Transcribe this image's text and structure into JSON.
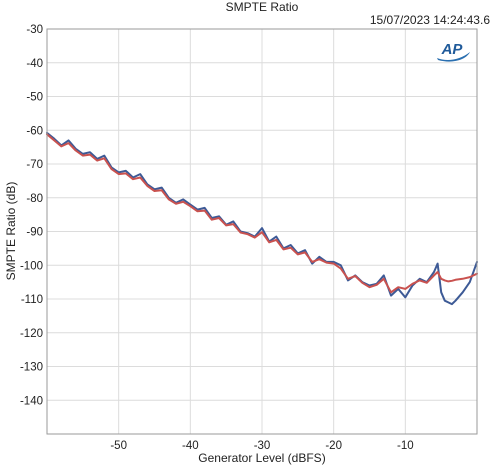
{
  "chart_data": {
    "type": "line",
    "title": "SMPTE Ratio",
    "timestamp": "15/07/2023 14:24:43.6",
    "logo_text": "AP",
    "xlabel": "Generator Level (dBFS)",
    "ylabel": "SMPTE Ratio (dB)",
    "xlim": [
      -60,
      0
    ],
    "ylim": [
      -150,
      -30
    ],
    "xticks": [
      -50,
      -40,
      -30,
      -20,
      -10
    ],
    "yticks": [
      -30,
      -40,
      -50,
      -60,
      -70,
      -80,
      -90,
      -100,
      -110,
      -120,
      -130,
      -140
    ],
    "grid": true,
    "series": [
      {
        "color": "#3d5a96",
        "x": [
          -60,
          -59,
          -58,
          -57,
          -56,
          -55,
          -54,
          -53,
          -52,
          -51,
          -50,
          -49,
          -48,
          -47,
          -46,
          -45,
          -44,
          -43,
          -42,
          -41,
          -40,
          -39,
          -38,
          -37,
          -36,
          -35,
          -34,
          -33,
          -32,
          -31,
          -30,
          -29,
          -28,
          -27,
          -26,
          -25,
          -24,
          -23,
          -22,
          -21,
          -20,
          -19,
          -18,
          -17,
          -16,
          -15,
          -14,
          -13,
          -12,
          -11,
          -10,
          -9,
          -8,
          -7,
          -6,
          -5.5,
          -5,
          -4.5,
          -4,
          -3.5,
          -3,
          -2,
          -1,
          0
        ],
        "values": [
          -60.8,
          -62.5,
          -64.5,
          -63.0,
          -65.5,
          -67.0,
          -66.5,
          -68.5,
          -67.5,
          -71.0,
          -72.5,
          -72.0,
          -74.0,
          -73.0,
          -76.0,
          -77.5,
          -77.0,
          -80.0,
          -81.5,
          -80.5,
          -82.0,
          -83.5,
          -83.0,
          -86.0,
          -85.5,
          -88.0,
          -87.0,
          -90.0,
          -90.5,
          -91.5,
          -89.0,
          -93.0,
          -91.5,
          -95.0,
          -94.0,
          -96.5,
          -95.5,
          -99.5,
          -97.5,
          -99.0,
          -99.0,
          -100.0,
          -104.5,
          -103.0,
          -105.0,
          -106.0,
          -105.5,
          -103.0,
          -109.0,
          -107.0,
          -109.5,
          -106.0,
          -104.0,
          -105.0,
          -102.0,
          -99.5,
          -108.0,
          -110.5,
          -111.0,
          -111.5,
          -110.5,
          -108.0,
          -105.0,
          -99.0
        ]
      },
      {
        "color": "#c9524f",
        "x": [
          -60,
          -59,
          -58,
          -57,
          -56,
          -55,
          -54,
          -53,
          -52,
          -51,
          -50,
          -49,
          -48,
          -47,
          -46,
          -45,
          -44,
          -43,
          -42,
          -41,
          -40,
          -39,
          -38,
          -37,
          -36,
          -35,
          -34,
          -33,
          -32,
          -31,
          -30,
          -29,
          -28,
          -27,
          -26,
          -25,
          -24,
          -23,
          -22,
          -21,
          -20,
          -19,
          -18,
          -17,
          -16,
          -15,
          -14,
          -13,
          -12,
          -11,
          -10,
          -9,
          -8,
          -7,
          -6,
          -5.5,
          -5,
          -4.5,
          -4,
          -3.5,
          -3,
          -2,
          -1,
          0
        ],
        "values": [
          -61.2,
          -63.0,
          -64.8,
          -63.8,
          -66.0,
          -67.5,
          -67.2,
          -69.0,
          -68.3,
          -71.5,
          -73.0,
          -72.8,
          -74.5,
          -74.0,
          -76.5,
          -78.0,
          -77.8,
          -80.5,
          -81.8,
          -81.2,
          -82.5,
          -84.0,
          -83.8,
          -86.5,
          -86.0,
          -88.2,
          -87.8,
          -90.3,
          -90.8,
          -91.8,
          -90.2,
          -93.2,
          -92.5,
          -95.3,
          -94.8,
          -96.8,
          -96.2,
          -99.0,
          -98.2,
          -99.2,
          -99.5,
          -101.0,
          -104.0,
          -103.2,
          -105.2,
          -106.5,
          -105.8,
          -104.0,
          -108.0,
          -106.5,
          -107.0,
          -105.5,
          -104.5,
          -105.2,
          -103.0,
          -102.0,
          -104.0,
          -104.5,
          -104.8,
          -104.6,
          -104.3,
          -104.0,
          -103.5,
          -102.5
        ]
      }
    ]
  }
}
